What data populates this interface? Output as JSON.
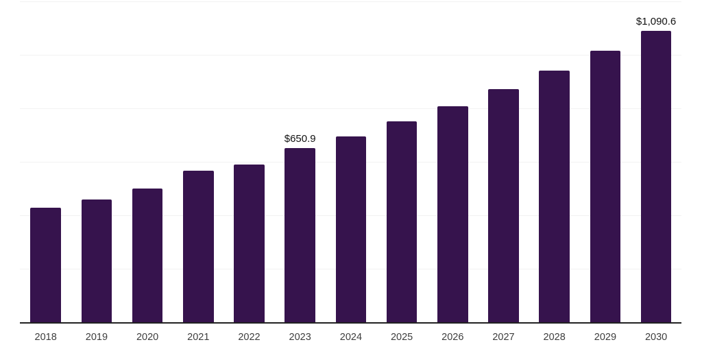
{
  "chart_data": {
    "type": "bar",
    "title": "",
    "xlabel": "",
    "ylabel": "",
    "categories": [
      "2018",
      "2019",
      "2020",
      "2021",
      "2022",
      "2023",
      "2024",
      "2025",
      "2026",
      "2027",
      "2028",
      "2029",
      "2030"
    ],
    "values": [
      427,
      460,
      499,
      566,
      590,
      650.9,
      696,
      751,
      807,
      871,
      941,
      1015,
      1090.6
    ],
    "value_labels": [
      "",
      "",
      "",
      "",
      "",
      "$650.9",
      "",
      "",
      "",
      "",
      "",
      "",
      "$1,090.6"
    ],
    "ylim": [
      0,
      1200
    ],
    "y_gridline_step": 200,
    "grid": true,
    "legend": false,
    "y_tick_labels_shown": false,
    "colors": {
      "bar": "#36134d",
      "axis": "#222222",
      "gridline": "#f2f2f2",
      "x_tick_label": "#3d3d3d",
      "data_label": "#111111",
      "background": "#ffffff"
    }
  }
}
